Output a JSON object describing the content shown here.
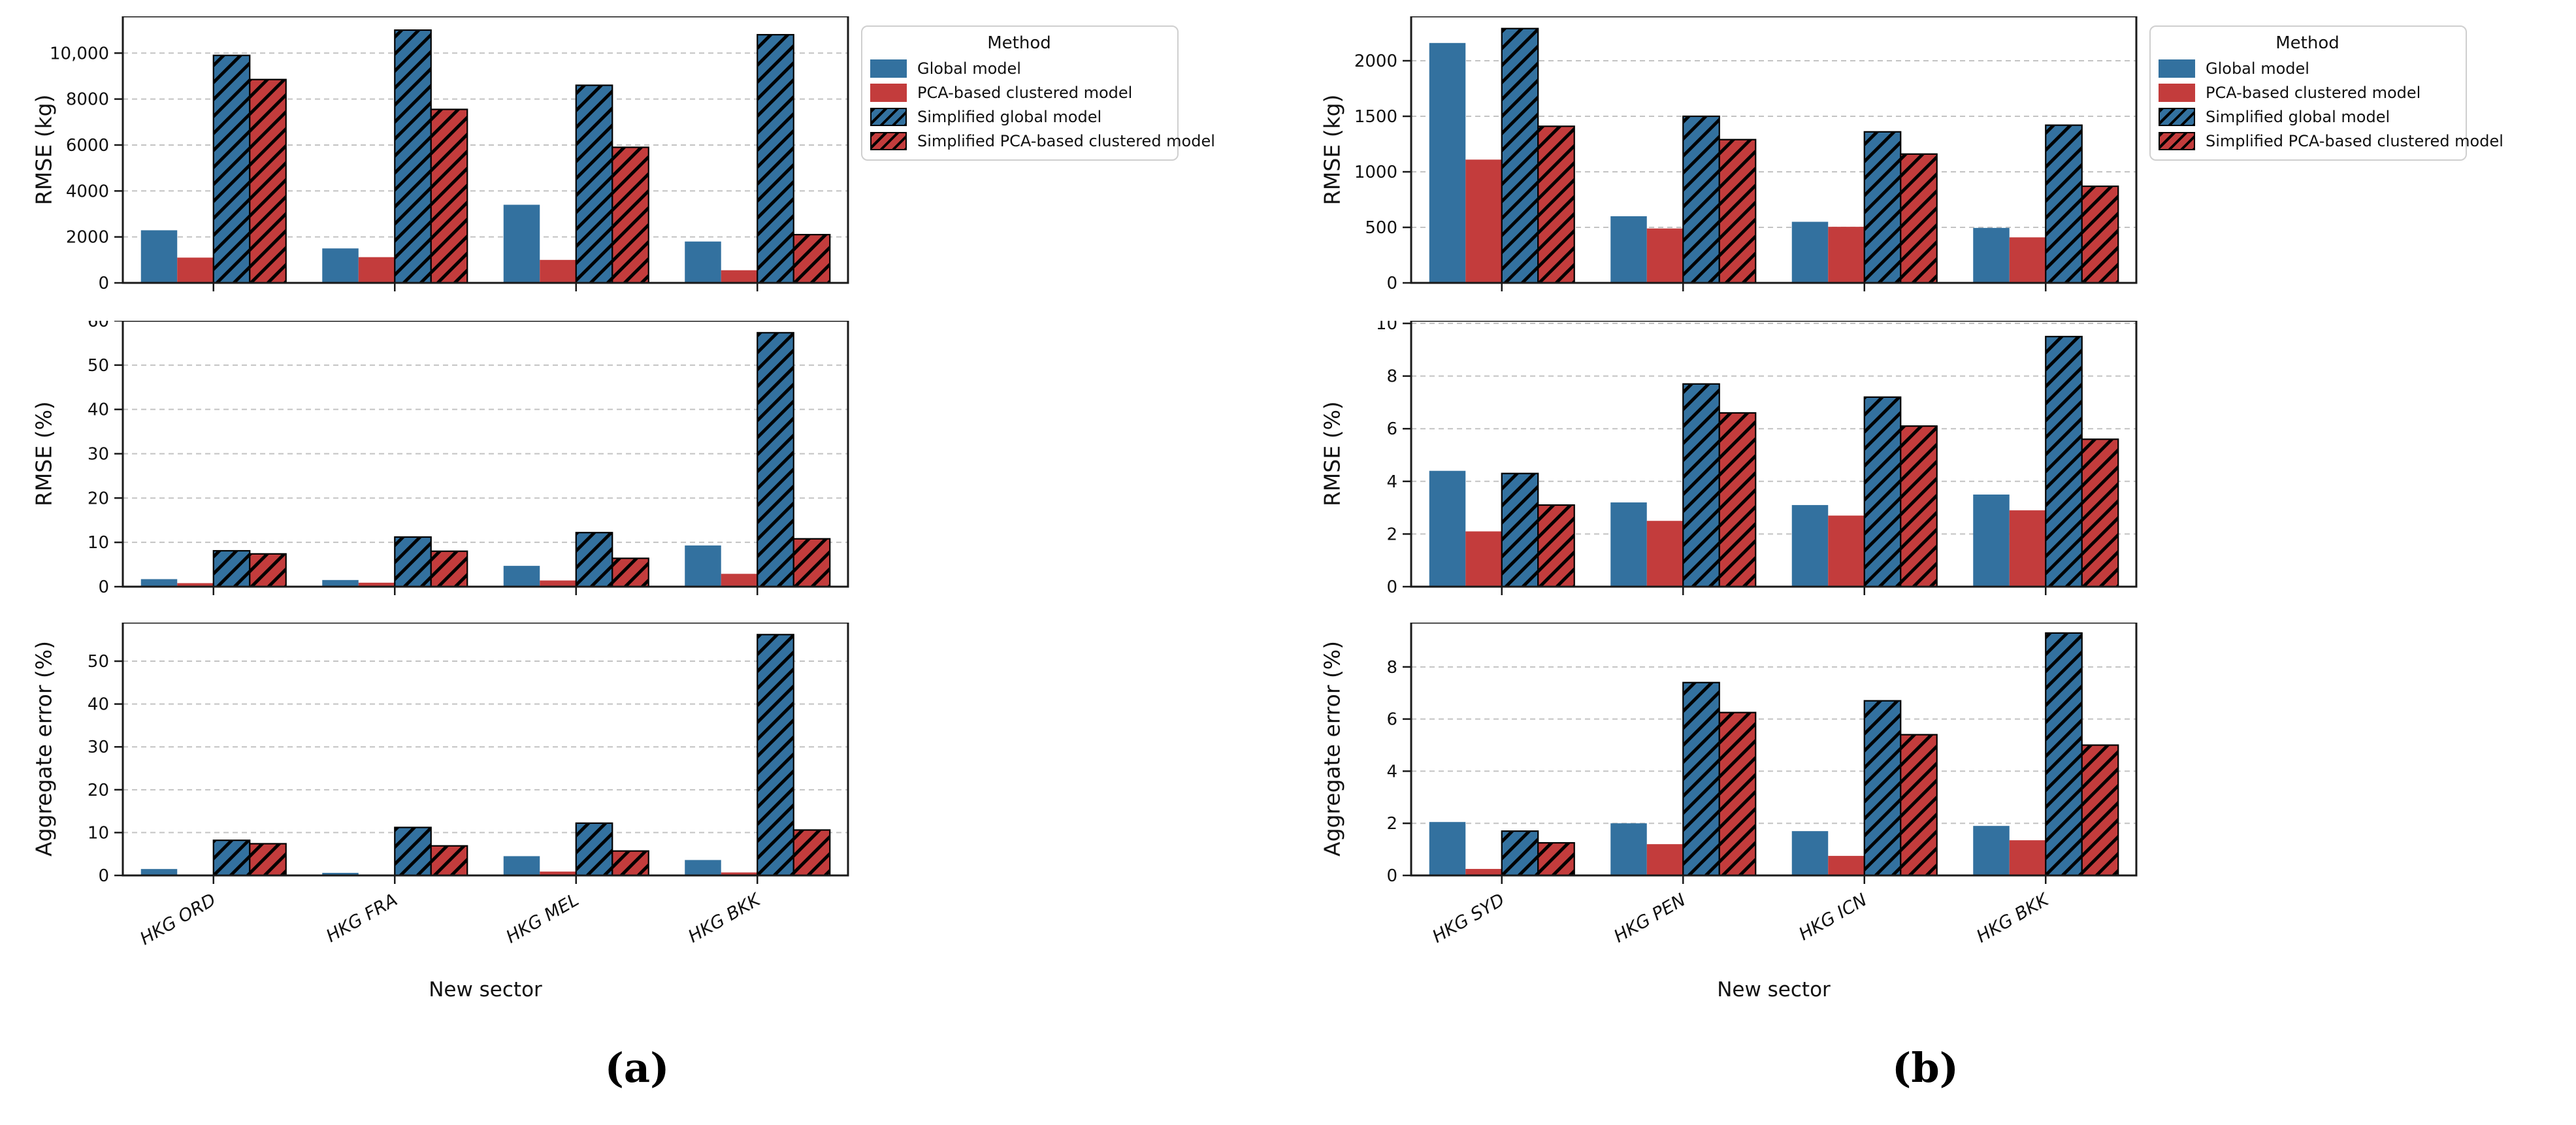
{
  "colors": {
    "global": "#33719f",
    "pca": "#c33c3c",
    "hatch_line": "#000000",
    "grid": "#c3c3c3",
    "spine": "#1a1a1a",
    "text": "#111111"
  },
  "legend": {
    "title": "Method",
    "entries": [
      {
        "label": "Global model",
        "color_key": "global",
        "hatched": false
      },
      {
        "label": "PCA-based clustered model",
        "color_key": "pca",
        "hatched": false
      },
      {
        "label": "Simplified global model",
        "color_key": "global",
        "hatched": true
      },
      {
        "label": "Simplified PCA-based clustered model",
        "color_key": "pca",
        "hatched": true
      }
    ]
  },
  "panels": [
    {
      "id": "a",
      "caption": "(a)",
      "xlabel": "New sector",
      "categories": [
        "HKG ORD",
        "HKG FRA",
        "HKG MEL",
        "HKG BKK"
      ]
    },
    {
      "id": "b",
      "caption": "(b)",
      "xlabel": "New sector",
      "categories": [
        "HKG SYD",
        "HKG PEN",
        "HKG ICN",
        "HKG BKK"
      ]
    }
  ],
  "chart_data": [
    {
      "panel": "a",
      "row": 0,
      "type": "bar",
      "title": "",
      "ylabel": "RMSE (kg)",
      "xlabel": "New sector",
      "ylim": [
        0,
        11600
      ],
      "yticks": [
        0,
        2000,
        4000,
        6000,
        8000,
        10000
      ],
      "ytick_labels": [
        "0",
        "2000",
        "4000",
        "6000",
        "8000",
        "10,000"
      ],
      "grid": true,
      "categories": [
        "HKG ORD",
        "HKG FRA",
        "HKG MEL",
        "HKG BKK"
      ],
      "series": [
        {
          "name": "Global model",
          "color_key": "global",
          "hatched": false,
          "values": [
            2290,
            1500,
            3400,
            1800
          ]
        },
        {
          "name": "PCA-based clustered model",
          "color_key": "pca",
          "hatched": false,
          "values": [
            1100,
            1120,
            1000,
            550
          ]
        },
        {
          "name": "Simplified global model",
          "color_key": "global",
          "hatched": true,
          "values": [
            9900,
            11000,
            8600,
            10800
          ]
        },
        {
          "name": "Simplified PCA-based clustered model",
          "color_key": "pca",
          "hatched": true,
          "values": [
            8850,
            7550,
            5900,
            2100
          ]
        }
      ]
    },
    {
      "panel": "a",
      "row": 1,
      "type": "bar",
      "title": "",
      "ylabel": "RMSE (%)",
      "xlabel": "New sector",
      "ylim": [
        0,
        60
      ],
      "yticks": [
        0,
        10,
        20,
        30,
        40,
        50,
        60
      ],
      "ytick_labels": [
        "0",
        "10",
        "20",
        "30",
        "40",
        "50",
        "60"
      ],
      "grid": true,
      "categories": [
        "HKG ORD",
        "HKG FRA",
        "HKG MEL",
        "HKG BKK"
      ],
      "series": [
        {
          "name": "Global model",
          "color_key": "global",
          "hatched": false,
          "values": [
            1.7,
            1.5,
            4.7,
            9.3
          ]
        },
        {
          "name": "PCA-based clustered model",
          "color_key": "pca",
          "hatched": false,
          "values": [
            0.8,
            0.9,
            1.4,
            2.9
          ]
        },
        {
          "name": "Simplified global model",
          "color_key": "global",
          "hatched": true,
          "values": [
            8.1,
            11.2,
            12.2,
            57.3
          ]
        },
        {
          "name": "Simplified PCA-based clustered model",
          "color_key": "pca",
          "hatched": true,
          "values": [
            7.4,
            8.0,
            6.4,
            10.8
          ]
        }
      ]
    },
    {
      "panel": "a",
      "row": 2,
      "type": "bar",
      "title": "",
      "ylabel": "Aggregate error (%)",
      "xlabel": "New sector",
      "ylim": [
        0,
        59
      ],
      "yticks": [
        0,
        10,
        20,
        30,
        40,
        50
      ],
      "ytick_labels": [
        "0",
        "10",
        "20",
        "30",
        "40",
        "50"
      ],
      "grid": true,
      "categories": [
        "HKG ORD",
        "HKG FRA",
        "HKG MEL",
        "HKG BKK"
      ],
      "series": [
        {
          "name": "Global model",
          "color_key": "global",
          "hatched": false,
          "values": [
            1.5,
            0.6,
            4.5,
            3.6
          ]
        },
        {
          "name": "PCA-based clustered model",
          "color_key": "pca",
          "hatched": false,
          "values": [
            0.05,
            0.05,
            0.9,
            0.7
          ]
        },
        {
          "name": "Simplified global model",
          "color_key": "global",
          "hatched": true,
          "values": [
            8.2,
            11.2,
            12.2,
            56.2
          ]
        },
        {
          "name": "Simplified PCA-based clustered model",
          "color_key": "pca",
          "hatched": true,
          "values": [
            7.4,
            6.9,
            5.7,
            10.6
          ]
        }
      ]
    },
    {
      "panel": "b",
      "row": 0,
      "type": "bar",
      "title": "",
      "ylabel": "RMSE (kg)",
      "xlabel": "New sector",
      "ylim": [
        0,
        2400
      ],
      "yticks": [
        0,
        500,
        1000,
        1500,
        2000
      ],
      "ytick_labels": [
        "0",
        "500",
        "1000",
        "1500",
        "2000"
      ],
      "grid": true,
      "categories": [
        "HKG SYD",
        "HKG PEN",
        "HKG ICN",
        "HKG BKK"
      ],
      "series": [
        {
          "name": "Global model",
          "color_key": "global",
          "hatched": false,
          "values": [
            2160,
            600,
            550,
            495
          ]
        },
        {
          "name": "PCA-based clustered model",
          "color_key": "pca",
          "hatched": false,
          "values": [
            1110,
            490,
            505,
            410
          ]
        },
        {
          "name": "Simplified global model",
          "color_key": "global",
          "hatched": true,
          "values": [
            2290,
            1500,
            1360,
            1420
          ]
        },
        {
          "name": "Simplified PCA-based clustered model",
          "color_key": "pca",
          "hatched": true,
          "values": [
            1410,
            1290,
            1160,
            870
          ]
        }
      ]
    },
    {
      "panel": "b",
      "row": 1,
      "type": "bar",
      "title": "",
      "ylabel": "RMSE (%)",
      "xlabel": "New sector",
      "ylim": [
        0,
        10.1
      ],
      "yticks": [
        0,
        2,
        4,
        6,
        8,
        10
      ],
      "ytick_labels": [
        "0",
        "2",
        "4",
        "6",
        "8",
        "10"
      ],
      "grid": true,
      "categories": [
        "HKG SYD",
        "HKG PEN",
        "HKG ICN",
        "HKG BKK"
      ],
      "series": [
        {
          "name": "Global model",
          "color_key": "global",
          "hatched": false,
          "values": [
            4.4,
            3.2,
            3.1,
            3.5
          ]
        },
        {
          "name": "PCA-based clustered model",
          "color_key": "pca",
          "hatched": false,
          "values": [
            2.1,
            2.5,
            2.7,
            2.9
          ]
        },
        {
          "name": "Simplified global model",
          "color_key": "global",
          "hatched": true,
          "values": [
            4.3,
            7.7,
            7.2,
            9.5
          ]
        },
        {
          "name": "Simplified PCA-based clustered model",
          "color_key": "pca",
          "hatched": true,
          "values": [
            3.1,
            6.6,
            6.1,
            5.6
          ]
        }
      ]
    },
    {
      "panel": "b",
      "row": 2,
      "type": "bar",
      "title": "",
      "ylabel": "Aggregate error (%)",
      "xlabel": "New sector",
      "ylim": [
        0,
        9.7
      ],
      "yticks": [
        0,
        2,
        4,
        6,
        8
      ],
      "ytick_labels": [
        "0",
        "2",
        "4",
        "6",
        "8"
      ],
      "grid": true,
      "categories": [
        "HKG SYD",
        "HKG PEN",
        "HKG ICN",
        "HKG BKK"
      ],
      "series": [
        {
          "name": "Global model",
          "color_key": "global",
          "hatched": false,
          "values": [
            2.05,
            2.0,
            1.7,
            1.9
          ]
        },
        {
          "name": "PCA-based clustered model",
          "color_key": "pca",
          "hatched": false,
          "values": [
            0.25,
            1.2,
            0.75,
            1.35
          ]
        },
        {
          "name": "Simplified global model",
          "color_key": "global",
          "hatched": true,
          "values": [
            1.7,
            7.4,
            6.7,
            9.3
          ]
        },
        {
          "name": "Simplified PCA-based clustered model",
          "color_key": "pca",
          "hatched": true,
          "values": [
            1.25,
            6.25,
            5.4,
            5.0
          ]
        }
      ]
    }
  ]
}
